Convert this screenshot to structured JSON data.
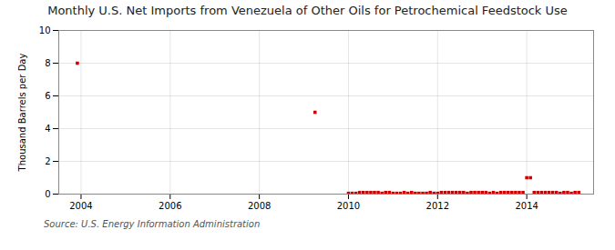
{
  "chart_data": {
    "type": "scatter",
    "title": "Monthly U.S. Net Imports from Venezuela of Other Oils for Petrochemical Feedstock Use",
    "y_label": "Thousand Barrels per Day",
    "source": "Source: U.S. Energy Information Administration",
    "color": "#cc0000",
    "marker": "square",
    "grid": true,
    "xlim": [
      2003.5,
      2015.5
    ],
    "xticks": [
      2004,
      2006,
      2008,
      2010,
      2012,
      2014
    ],
    "ylim": [
      0,
      10
    ],
    "yticks": [
      0,
      2,
      4,
      6,
      8,
      10
    ],
    "x": [
      2003.917,
      2009.25,
      2010.0,
      2010.083,
      2010.167,
      2010.25,
      2010.333,
      2010.417,
      2010.5,
      2010.583,
      2010.667,
      2010.75,
      2010.833,
      2010.917,
      2011.0,
      2011.083,
      2011.167,
      2011.25,
      2011.333,
      2011.417,
      2011.5,
      2011.583,
      2011.667,
      2011.75,
      2011.833,
      2011.917,
      2012.0,
      2012.083,
      2012.167,
      2012.25,
      2012.333,
      2012.417,
      2012.5,
      2012.583,
      2012.667,
      2012.75,
      2012.833,
      2012.917,
      2013.0,
      2013.083,
      2013.167,
      2013.25,
      2013.333,
      2013.417,
      2013.5,
      2013.583,
      2013.667,
      2013.75,
      2013.833,
      2013.917,
      2014.0,
      2014.083,
      2014.167,
      2014.25,
      2014.333,
      2014.417,
      2014.5,
      2014.583,
      2014.667,
      2014.75,
      2014.833,
      2014.917,
      2015.0,
      2015.083,
      2015.167
    ],
    "values": [
      8.0,
      5.0,
      0.05,
      0.05,
      0.05,
      0.1,
      0.1,
      0.1,
      0.1,
      0.1,
      0.1,
      0.05,
      0.1,
      0.1,
      0.05,
      0.05,
      0.05,
      0.1,
      0.05,
      0.1,
      0.05,
      0.05,
      0.05,
      0.05,
      0.1,
      0.05,
      0.05,
      0.1,
      0.1,
      0.1,
      0.1,
      0.1,
      0.1,
      0.1,
      0.05,
      0.1,
      0.1,
      0.1,
      0.1,
      0.1,
      0.05,
      0.1,
      0.05,
      0.1,
      0.1,
      0.1,
      0.1,
      0.1,
      0.1,
      0.1,
      1.0,
      1.0,
      0.1,
      0.1,
      0.1,
      0.1,
      0.1,
      0.1,
      0.1,
      0.05,
      0.1,
      0.1,
      0.05,
      0.1,
      0.1
    ]
  }
}
